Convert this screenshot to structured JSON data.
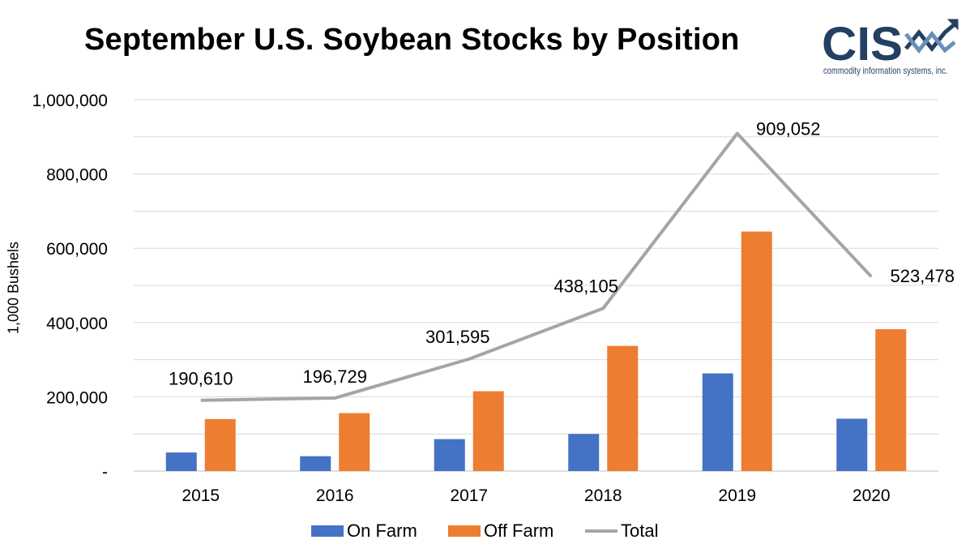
{
  "title": "September U.S. Soybean Stocks by Position",
  "logo": {
    "text": "CIS",
    "subtitle": "commodity information systems, inc."
  },
  "colors": {
    "on_farm": "#4472c4",
    "off_farm": "#ed7d31",
    "total": "#a5a5a5",
    "grid": "#d9d9d9",
    "logo": "#233f62",
    "logo_accent": "#6a8fb8"
  },
  "chart_data": {
    "type": "bar",
    "categories": [
      "2015",
      "2016",
      "2017",
      "2018",
      "2019",
      "2020"
    ],
    "series": [
      {
        "name": "On Farm",
        "type": "bar",
        "values": [
          50000,
          40000,
          86000,
          100000,
          263000,
          141000
        ]
      },
      {
        "name": "Off Farm",
        "type": "bar",
        "values": [
          140000,
          156000,
          215000,
          337000,
          645000,
          382000
        ]
      },
      {
        "name": "Total",
        "type": "line",
        "values": [
          190610,
          196729,
          301595,
          438105,
          909052,
          523478
        ]
      }
    ],
    "total_labels": [
      "190,610",
      "196,729",
      "301,595",
      "438,105",
      "909,052",
      "523,478"
    ],
    "ylabel": "1,000 Bushels",
    "xlabel": "",
    "ylim": [
      0,
      1000000
    ],
    "yticks": [
      0,
      200000,
      400000,
      600000,
      800000,
      1000000
    ],
    "ytick_labels": [
      "-",
      "200,000",
      "400,000",
      "600,000",
      "800,000",
      "1,000,000"
    ],
    "grid": true,
    "legend_position": "bottom"
  }
}
